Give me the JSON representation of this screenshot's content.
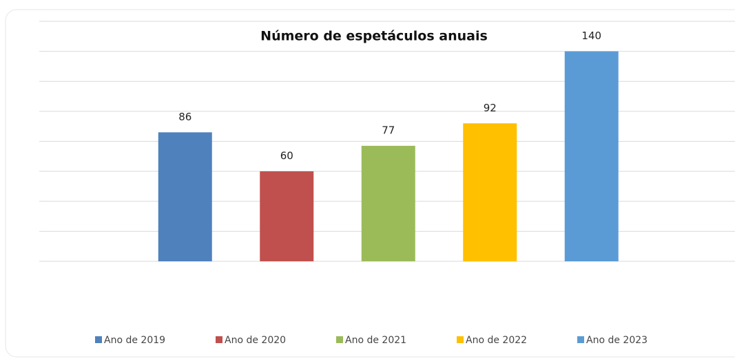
{
  "chart_data": {
    "type": "bar",
    "title": "Número de espetáculos anuais",
    "series": [
      {
        "name": "Ano de 2019",
        "color": "#4f81bd",
        "values": [
          86
        ]
      },
      {
        "name": "Ano de 2020",
        "color": "#c0504d",
        "values": [
          60
        ]
      },
      {
        "name": "Ano de 2021",
        "color": "#9bbb59",
        "values": [
          77
        ]
      },
      {
        "name": "Ano de 2022",
        "color": "#ffc000",
        "values": [
          92
        ]
      },
      {
        "name": "Ano de 2023",
        "color": "#5b9bd5",
        "values": [
          140
        ]
      }
    ],
    "ylim": [
      0,
      160
    ],
    "yticks": [
      0,
      20,
      40,
      60,
      80,
      100,
      120,
      140,
      160
    ],
    "grid": true,
    "legend": "bottom"
  }
}
